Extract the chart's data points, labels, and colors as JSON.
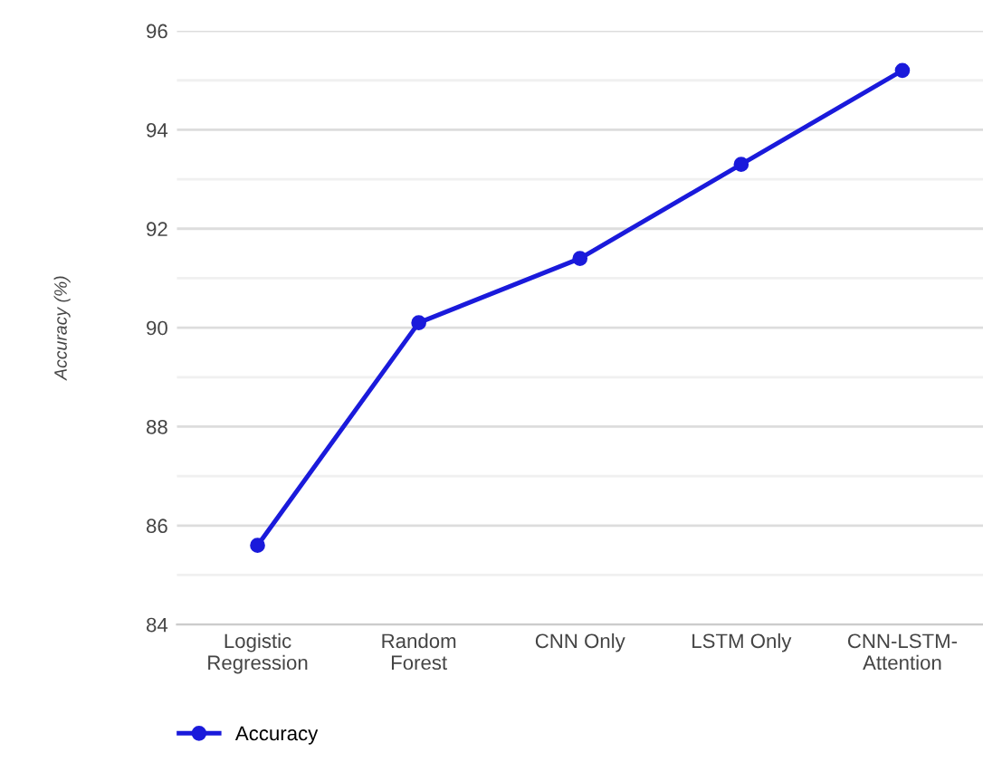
{
  "chart_data": {
    "type": "line",
    "ylabel": "Accuracy (%)",
    "categories": [
      "Logistic\nRegression",
      "Random\nForest",
      "CNN Only",
      "LSTM Only",
      "CNN-LSTM-\nAttention"
    ],
    "series": [
      {
        "name": "Accuracy",
        "color": "#1a1adb",
        "values": [
          85.6,
          90.1,
          91.4,
          93.3,
          95.2
        ]
      }
    ],
    "ylim": [
      84,
      96
    ],
    "yticks": [
      84,
      {
        "value": 85,
        "label": null
      },
      86,
      {
        "value": 87,
        "label": null
      },
      88,
      {
        "value": 89,
        "label": null
      },
      90,
      {
        "value": 91,
        "label": null
      },
      92,
      {
        "value": 93,
        "label": null
      },
      94,
      {
        "value": 95,
        "label": null
      },
      96
    ],
    "grid": "y",
    "legend": "bottom left",
    "marker": "circle",
    "line_style": "solid"
  }
}
